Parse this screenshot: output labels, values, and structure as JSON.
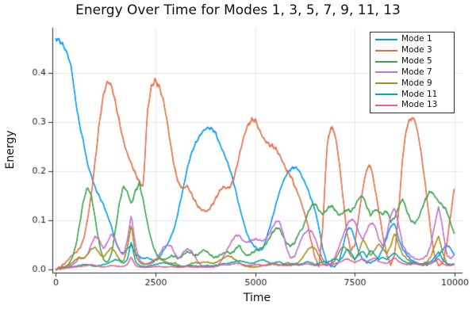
{
  "title": "Energy Over Time for Modes 1, 3, 5, 7, 9, 11, 13",
  "axes": {
    "xlabel": "Time",
    "ylabel": "Energy",
    "xticks": [
      "0",
      "2500",
      "5000",
      "7500",
      "10000"
    ],
    "yticks": [
      "0.0",
      "0.1",
      "0.2",
      "0.3",
      "0.4"
    ],
    "xlim": [
      -150,
      10250
    ],
    "ylim": [
      -0.006,
      0.492
    ],
    "grid": true,
    "spine_color": "#2b2b2b",
    "grid_color": "rgba(0,0,0,0.09)",
    "tick_text_color": "#1a1a1a"
  },
  "legend": {
    "position": "top-right",
    "border_color": "#333333",
    "labels": [
      "Mode 1",
      "Mode 3",
      "Mode 5",
      "Mode 7",
      "Mode 9",
      "Mode 11",
      "Mode 13"
    ]
  },
  "chart_data": {
    "type": "line",
    "title": "Energy Over Time for Modes 1, 3, 5, 7, 9, 11, 13",
    "xlabel": "Time",
    "ylabel": "Energy",
    "x_start": 0,
    "x_step": 100,
    "x_max": 10000,
    "xlim": [
      -150,
      10250
    ],
    "ylim": [
      -0.006,
      0.492
    ],
    "legend_position": "top-right",
    "series": [
      {
        "name": "Mode 1",
        "color": "#009AFA",
        "band": 0.0035,
        "values": [
          0.47,
          0.466,
          0.455,
          0.438,
          0.41,
          0.345,
          0.295,
          0.26,
          0.215,
          0.19,
          0.165,
          0.148,
          0.132,
          0.11,
          0.088,
          0.058,
          0.038,
          0.032,
          0.042,
          0.05,
          0.032,
          0.026,
          0.022,
          0.024,
          0.02,
          0.018,
          0.024,
          0.038,
          0.05,
          0.068,
          0.09,
          0.128,
          0.165,
          0.205,
          0.235,
          0.255,
          0.27,
          0.282,
          0.288,
          0.287,
          0.28,
          0.258,
          0.24,
          0.22,
          0.196,
          0.165,
          0.13,
          0.1,
          0.072,
          0.055,
          0.046,
          0.038,
          0.042,
          0.068,
          0.095,
          0.125,
          0.155,
          0.178,
          0.195,
          0.205,
          0.208,
          0.202,
          0.185,
          0.168,
          0.145,
          0.122,
          0.085,
          0.04,
          0.014,
          0.007,
          0.006,
          0.015,
          0.045,
          0.08,
          0.086,
          0.062,
          0.035,
          0.02,
          0.014,
          0.014,
          0.018,
          0.025,
          0.042,
          0.065,
          0.088,
          0.094,
          0.062,
          0.042,
          0.03,
          0.02,
          0.015,
          0.011,
          0.009,
          0.009,
          0.012,
          0.018,
          0.028,
          0.04,
          0.05,
          0.043,
          0.028
        ]
      },
      {
        "name": "Mode 3",
        "color": "#E36F47",
        "band": 0.005,
        "values": [
          0.0,
          0.004,
          0.01,
          0.018,
          0.028,
          0.034,
          0.042,
          0.06,
          0.1,
          0.155,
          0.225,
          0.3,
          0.355,
          0.383,
          0.375,
          0.34,
          0.3,
          0.262,
          0.235,
          0.215,
          0.195,
          0.178,
          0.168,
          0.32,
          0.372,
          0.385,
          0.372,
          0.345,
          0.3,
          0.245,
          0.2,
          0.172,
          0.165,
          0.17,
          0.155,
          0.138,
          0.125,
          0.12,
          0.118,
          0.128,
          0.142,
          0.158,
          0.168,
          0.165,
          0.17,
          0.195,
          0.23,
          0.265,
          0.29,
          0.303,
          0.305,
          0.285,
          0.268,
          0.258,
          0.252,
          0.248,
          0.235,
          0.218,
          0.2,
          0.19,
          0.168,
          0.15,
          0.125,
          0.098,
          0.06,
          0.025,
          0.006,
          0.09,
          0.25,
          0.29,
          0.278,
          0.225,
          0.15,
          0.075,
          0.038,
          0.05,
          0.11,
          0.165,
          0.205,
          0.212,
          0.168,
          0.12,
          0.07,
          0.03,
          0.01,
          0.03,
          0.12,
          0.23,
          0.29,
          0.308,
          0.305,
          0.27,
          0.215,
          0.15,
          0.08,
          0.025,
          0.008,
          0.012,
          0.05,
          0.11,
          0.17
        ]
      },
      {
        "name": "Mode 5",
        "color": "#3DA44E",
        "band": 0.0045,
        "values": [
          0.0,
          0.002,
          0.004,
          0.008,
          0.02,
          0.045,
          0.09,
          0.14,
          0.168,
          0.15,
          0.1,
          0.05,
          0.02,
          0.014,
          0.03,
          0.08,
          0.135,
          0.17,
          0.158,
          0.132,
          0.16,
          0.175,
          0.14,
          0.095,
          0.06,
          0.035,
          0.024,
          0.02,
          0.022,
          0.028,
          0.026,
          0.022,
          0.03,
          0.036,
          0.034,
          0.028,
          0.032,
          0.04,
          0.036,
          0.028,
          0.024,
          0.028,
          0.033,
          0.036,
          0.032,
          0.04,
          0.05,
          0.035,
          0.028,
          0.032,
          0.038,
          0.042,
          0.045,
          0.055,
          0.07,
          0.082,
          0.085,
          0.068,
          0.052,
          0.048,
          0.055,
          0.075,
          0.084,
          0.11,
          0.128,
          0.135,
          0.12,
          0.112,
          0.122,
          0.13,
          0.122,
          0.11,
          0.115,
          0.122,
          0.118,
          0.128,
          0.145,
          0.15,
          0.128,
          0.11,
          0.122,
          0.118,
          0.112,
          0.12,
          0.098,
          0.105,
          0.128,
          0.144,
          0.12,
          0.1,
          0.094,
          0.105,
          0.128,
          0.148,
          0.16,
          0.15,
          0.138,
          0.13,
          0.12,
          0.095,
          0.07
        ]
      },
      {
        "name": "Mode 7",
        "color": "#C371D2",
        "band": 0.0035,
        "values": [
          0.0,
          0.002,
          0.004,
          0.006,
          0.008,
          0.014,
          0.024,
          0.022,
          0.03,
          0.052,
          0.068,
          0.06,
          0.042,
          0.055,
          0.073,
          0.06,
          0.04,
          0.028,
          0.06,
          0.112,
          0.05,
          0.02,
          0.012,
          0.01,
          0.012,
          0.018,
          0.03,
          0.045,
          0.05,
          0.048,
          0.03,
          0.022,
          0.035,
          0.042,
          0.038,
          0.025,
          0.012,
          0.006,
          0.005,
          0.005,
          0.006,
          0.01,
          0.025,
          0.04,
          0.055,
          0.068,
          0.07,
          0.058,
          0.055,
          0.058,
          0.062,
          0.06,
          0.058,
          0.065,
          0.08,
          0.095,
          0.1,
          0.075,
          0.04,
          0.022,
          0.028,
          0.05,
          0.07,
          0.078,
          0.08,
          0.065,
          0.04,
          0.02,
          0.01,
          0.012,
          0.025,
          0.045,
          0.068,
          0.09,
          0.102,
          0.098,
          0.075,
          0.06,
          0.08,
          0.095,
          0.09,
          0.062,
          0.048,
          0.07,
          0.11,
          0.126,
          0.09,
          0.05,
          0.035,
          0.028,
          0.022,
          0.02,
          0.022,
          0.028,
          0.048,
          0.09,
          0.128,
          0.085,
          0.03,
          0.022,
          0.03
        ]
      },
      {
        "name": "Mode 9",
        "color": "#AC8D18",
        "band": 0.0025,
        "values": [
          0.0,
          0.002,
          0.005,
          0.008,
          0.012,
          0.02,
          0.025,
          0.022,
          0.03,
          0.042,
          0.045,
          0.032,
          0.025,
          0.035,
          0.045,
          0.035,
          0.02,
          0.015,
          0.045,
          0.092,
          0.03,
          0.015,
          0.01,
          0.012,
          0.015,
          0.02,
          0.022,
          0.018,
          0.014,
          0.012,
          0.013,
          0.008,
          0.006,
          0.008,
          0.012,
          0.014,
          0.013,
          0.015,
          0.015,
          0.013,
          0.013,
          0.018,
          0.022,
          0.028,
          0.026,
          0.02,
          0.014,
          0.008,
          0.006,
          0.005,
          0.005,
          0.006,
          0.008,
          0.01,
          0.012,
          0.01,
          0.008,
          0.01,
          0.014,
          0.012,
          0.01,
          0.015,
          0.025,
          0.038,
          0.046,
          0.044,
          0.028,
          0.012,
          0.008,
          0.01,
          0.018,
          0.035,
          0.047,
          0.042,
          0.028,
          0.02,
          0.035,
          0.062,
          0.048,
          0.028,
          0.04,
          0.052,
          0.042,
          0.032,
          0.048,
          0.075,
          0.05,
          0.03,
          0.022,
          0.015,
          0.012,
          0.01,
          0.012,
          0.015,
          0.025,
          0.048,
          0.068,
          0.035,
          0.012,
          0.008,
          0.01
        ]
      },
      {
        "name": "Mode 11",
        "color": "#00AAAE",
        "band": 0.002,
        "values": [
          0.0,
          0.002,
          0.003,
          0.004,
          0.005,
          0.006,
          0.008,
          0.01,
          0.01,
          0.008,
          0.006,
          0.008,
          0.01,
          0.012,
          0.016,
          0.02,
          0.018,
          0.012,
          0.02,
          0.058,
          0.016,
          0.008,
          0.006,
          0.006,
          0.008,
          0.01,
          0.012,
          0.014,
          0.012,
          0.01,
          0.008,
          0.006,
          0.006,
          0.007,
          0.008,
          0.007,
          0.006,
          0.007,
          0.008,
          0.007,
          0.008,
          0.01,
          0.012,
          0.012,
          0.014,
          0.016,
          0.018,
          0.016,
          0.014,
          0.012,
          0.014,
          0.018,
          0.02,
          0.016,
          0.012,
          0.014,
          0.016,
          0.012,
          0.01,
          0.01,
          0.012,
          0.01,
          0.012,
          0.016,
          0.014,
          0.01,
          0.012,
          0.016,
          0.014,
          0.018,
          0.022,
          0.018,
          0.025,
          0.042,
          0.035,
          0.02,
          0.03,
          0.038,
          0.025,
          0.04,
          0.03,
          0.02,
          0.025,
          0.02,
          0.028,
          0.034,
          0.025,
          0.018,
          0.014,
          0.012,
          0.016,
          0.012,
          0.01,
          0.012,
          0.016,
          0.024,
          0.036,
          0.02,
          0.012,
          0.01,
          0.012
        ]
      },
      {
        "name": "Mode 13",
        "color": "#ED5E93",
        "band": 0.0015,
        "values": [
          0.0,
          0.001,
          0.002,
          0.003,
          0.004,
          0.005,
          0.006,
          0.007,
          0.008,
          0.01,
          0.008,
          0.006,
          0.005,
          0.006,
          0.008,
          0.007,
          0.006,
          0.006,
          0.01,
          0.026,
          0.008,
          0.005,
          0.004,
          0.004,
          0.005,
          0.006,
          0.006,
          0.005,
          0.005,
          0.006,
          0.005,
          0.004,
          0.005,
          0.006,
          0.005,
          0.004,
          0.005,
          0.005,
          0.004,
          0.005,
          0.006,
          0.008,
          0.01,
          0.009,
          0.01,
          0.012,
          0.012,
          0.01,
          0.008,
          0.008,
          0.01,
          0.01,
          0.008,
          0.008,
          0.01,
          0.012,
          0.01,
          0.008,
          0.008,
          0.008,
          0.01,
          0.008,
          0.01,
          0.012,
          0.01,
          0.008,
          0.008,
          0.01,
          0.008,
          0.01,
          0.012,
          0.014,
          0.018,
          0.022,
          0.018,
          0.014,
          0.018,
          0.022,
          0.016,
          0.02,
          0.024,
          0.016,
          0.014,
          0.012,
          0.018,
          0.024,
          0.016,
          0.012,
          0.01,
          0.01,
          0.012,
          0.01,
          0.008,
          0.01,
          0.012,
          0.016,
          0.022,
          0.012,
          0.008,
          0.008,
          0.01
        ]
      }
    ]
  }
}
